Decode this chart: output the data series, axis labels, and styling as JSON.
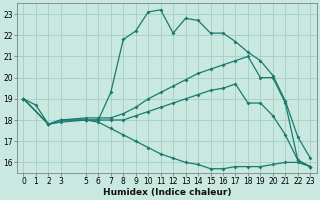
{
  "xlabel": "Humidex (Indice chaleur)",
  "bg_color": "#c8e8e0",
  "grid_color": "#a0c8c0",
  "line_color": "#1a7a6e",
  "xlim": [
    -0.5,
    23.5
  ],
  "ylim": [
    15.5,
    23.5
  ],
  "xticks": [
    0,
    1,
    2,
    3,
    5,
    6,
    7,
    8,
    9,
    10,
    11,
    12,
    13,
    14,
    15,
    16,
    17,
    18,
    19,
    20,
    21,
    22,
    23
  ],
  "yticks": [
    16,
    17,
    18,
    19,
    20,
    21,
    22,
    23
  ],
  "curves": [
    {
      "x": [
        0,
        1,
        2,
        3,
        5,
        6,
        7,
        8,
        9,
        10,
        11,
        12,
        13,
        14,
        15,
        16,
        17,
        18,
        19,
        20,
        21,
        22,
        23
      ],
      "y": [
        19.0,
        18.7,
        17.8,
        17.9,
        18.0,
        18.0,
        19.3,
        21.8,
        22.2,
        23.1,
        23.2,
        22.1,
        22.8,
        22.7,
        22.1,
        22.1,
        21.7,
        21.2,
        20.8,
        20.1,
        18.9,
        17.2,
        16.2
      ]
    },
    {
      "x": [
        0,
        2,
        3,
        5,
        6,
        7,
        8,
        9,
        10,
        11,
        12,
        13,
        14,
        15,
        16,
        17,
        18,
        19,
        20,
        21,
        22,
        23
      ],
      "y": [
        19.0,
        17.8,
        18.0,
        18.1,
        18.1,
        18.1,
        18.3,
        18.6,
        19.0,
        19.3,
        19.6,
        19.9,
        20.2,
        20.4,
        20.6,
        20.8,
        21.0,
        20.0,
        20.0,
        18.8,
        16.1,
        15.8
      ]
    },
    {
      "x": [
        0,
        2,
        3,
        5,
        6,
        7,
        8,
        9,
        10,
        11,
        12,
        13,
        14,
        15,
        16,
        17,
        18,
        19,
        20,
        21,
        22,
        23
      ],
      "y": [
        19.0,
        17.8,
        18.0,
        18.0,
        18.0,
        18.0,
        18.0,
        18.2,
        18.4,
        18.6,
        18.8,
        19.0,
        19.2,
        19.4,
        19.5,
        19.7,
        18.8,
        18.8,
        18.2,
        17.3,
        16.1,
        15.8
      ]
    },
    {
      "x": [
        0,
        2,
        3,
        5,
        6,
        7,
        8,
        9,
        10,
        11,
        12,
        13,
        14,
        15,
        16,
        17,
        18,
        19,
        20,
        21,
        22,
        23
      ],
      "y": [
        19.0,
        17.8,
        18.0,
        18.0,
        17.9,
        17.6,
        17.3,
        17.0,
        16.7,
        16.4,
        16.2,
        16.0,
        15.9,
        15.7,
        15.7,
        15.8,
        15.8,
        15.8,
        15.9,
        16.0,
        16.0,
        15.8
      ]
    }
  ]
}
